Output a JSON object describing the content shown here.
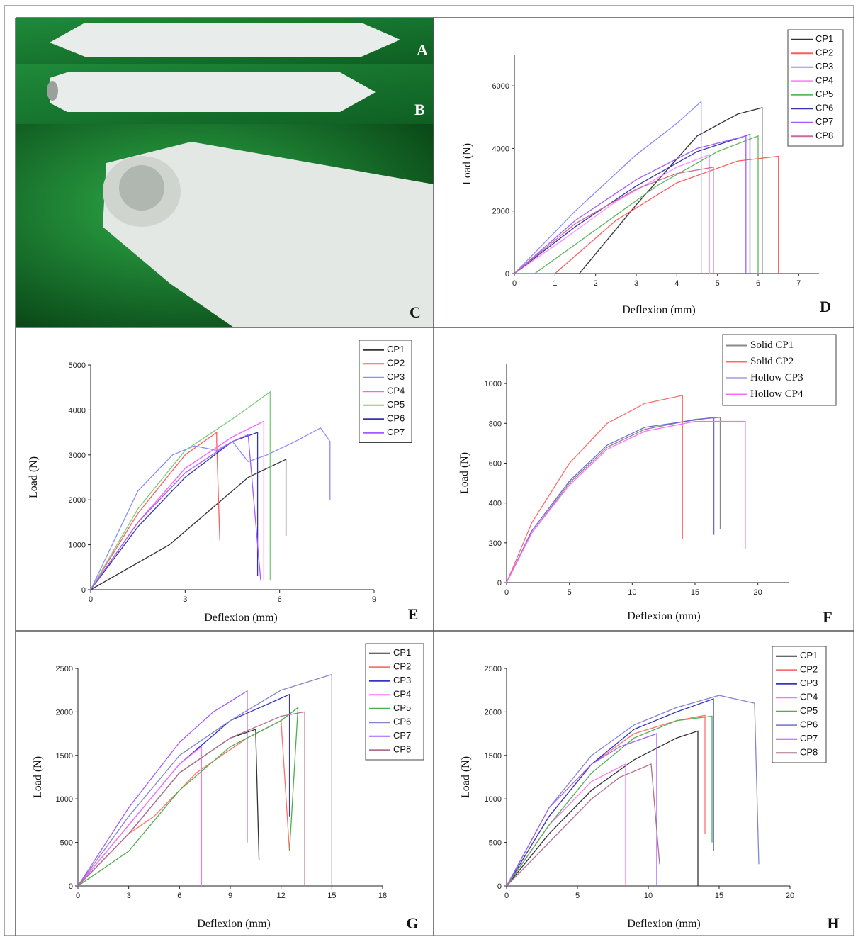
{
  "photo": {
    "labels": [
      "A",
      "B",
      "C"
    ]
  },
  "chart_data": [
    {
      "type": "line",
      "panel": "D",
      "xlabel": "Deflexion (mm)",
      "ylabel": "Load (N)",
      "xlim": [
        0,
        7.5
      ],
      "ylim": [
        0,
        7000
      ],
      "xticks": [
        0,
        1,
        2,
        3,
        4,
        5,
        6,
        7
      ],
      "yticks": [
        0,
        2000,
        4000,
        6000
      ],
      "legend": "upper right",
      "series": [
        {
          "name": "CP1",
          "color": "#333333",
          "x": [
            0,
            1.6,
            3,
            4.5,
            5.5,
            6.1,
            6.1
          ],
          "values": [
            0,
            0,
            2200,
            4400,
            5100,
            5300,
            0
          ]
        },
        {
          "name": "CP2",
          "color": "#ff5c5c",
          "x": [
            0,
            1,
            2.5,
            4,
            5.5,
            6.5,
            6.5
          ],
          "values": [
            0,
            0,
            1700,
            2900,
            3600,
            3750,
            0
          ]
        },
        {
          "name": "CP3",
          "color": "#8c8cff",
          "x": [
            0,
            1.5,
            3,
            4,
            4.6,
            4.6
          ],
          "values": [
            0,
            2000,
            3800,
            4800,
            5500,
            0
          ]
        },
        {
          "name": "CP4",
          "color": "#ff8cff",
          "x": [
            0,
            1,
            2.5,
            4,
            4.8,
            4.8
          ],
          "values": [
            0,
            900,
            2300,
            3400,
            3800,
            0
          ]
        },
        {
          "name": "CP5",
          "color": "#5cb85c",
          "x": [
            0,
            0.5,
            2,
            3.5,
            5,
            6,
            6
          ],
          "values": [
            0,
            0,
            1400,
            2800,
            3900,
            4400,
            0
          ]
        },
        {
          "name": "CP6",
          "color": "#3535a8",
          "x": [
            0,
            1.5,
            3,
            4.5,
            5.8,
            5.8
          ],
          "values": [
            0,
            1500,
            2800,
            3900,
            4450,
            0
          ]
        },
        {
          "name": "CP7",
          "color": "#a35cff",
          "x": [
            0,
            1.5,
            3,
            4.5,
            5.7,
            5.7
          ],
          "values": [
            0,
            1700,
            3000,
            4000,
            4400,
            0
          ]
        },
        {
          "name": "CP8",
          "color": "#c86a9a",
          "x": [
            0,
            1.5,
            3,
            4,
            4.9,
            4.9
          ],
          "values": [
            0,
            1600,
            2700,
            3200,
            3400,
            0
          ]
        }
      ]
    },
    {
      "type": "line",
      "panel": "E",
      "xlabel": "Deflexion (mm)",
      "ylabel": "Load (N)",
      "xlim": [
        0,
        9
      ],
      "ylim": [
        0,
        5000
      ],
      "xticks": [
        0,
        3,
        6,
        9
      ],
      "yticks": [
        0,
        1000,
        2000,
        3000,
        4000,
        5000
      ],
      "legend": "upper right",
      "series": [
        {
          "name": "CP1",
          "color": "#333333",
          "x": [
            0,
            2.5,
            5,
            6.2,
            6.2
          ],
          "values": [
            0,
            1000,
            2500,
            2900,
            1200
          ]
        },
        {
          "name": "CP2",
          "color": "#ff5c5c",
          "x": [
            0,
            1.5,
            3,
            4,
            4,
            4.1
          ],
          "values": [
            0,
            1700,
            3000,
            3500,
            3300,
            1100
          ]
        },
        {
          "name": "CP3",
          "color": "#8c8cff",
          "x": [
            0,
            1.5,
            2.6,
            3.3,
            4,
            4.5,
            5,
            5.6,
            6.5,
            7.3,
            7.6,
            7.6
          ],
          "values": [
            0,
            2200,
            3000,
            3200,
            3100,
            3300,
            2850,
            3000,
            3300,
            3600,
            3300,
            2000
          ]
        },
        {
          "name": "CP4",
          "color": "#ff5cff",
          "x": [
            0,
            1.5,
            3,
            4.5,
            5.5,
            5.5
          ],
          "values": [
            0,
            1500,
            2700,
            3400,
            3750,
            200
          ]
        },
        {
          "name": "CP5",
          "color": "#7ccc7c",
          "x": [
            0,
            1.5,
            3,
            4.5,
            5.7,
            5.7
          ],
          "values": [
            0,
            1800,
            3100,
            3800,
            4400,
            200
          ]
        },
        {
          "name": "CP6",
          "color": "#3535a8",
          "x": [
            0,
            1.5,
            3,
            4.5,
            5.3,
            5.3
          ],
          "values": [
            0,
            1400,
            2500,
            3300,
            3500,
            300
          ]
        },
        {
          "name": "CP7",
          "color": "#a35cff",
          "x": [
            0,
            1.5,
            3,
            4.5,
            5,
            5.4
          ],
          "values": [
            0,
            1500,
            2600,
            3300,
            3450,
            200
          ]
        }
      ]
    },
    {
      "type": "line",
      "panel": "F",
      "xlabel": "Deflexion (mm)",
      "ylabel": "Load (N)",
      "xlim": [
        0,
        22.5
      ],
      "ylim": [
        0,
        1100
      ],
      "xticks": [
        0,
        5,
        10,
        15,
        20
      ],
      "yticks": [
        0,
        200,
        400,
        600,
        800,
        1000
      ],
      "legend": "upper right",
      "series": [
        {
          "name": "Solid CP1",
          "color": "#888888",
          "x": [
            0,
            2,
            5,
            8,
            11,
            15,
            17,
            17
          ],
          "values": [
            0,
            250,
            500,
            680,
            770,
            820,
            830,
            270
          ]
        },
        {
          "name": "Solid CP2",
          "color": "#ff6b6b",
          "x": [
            0,
            2,
            5,
            8,
            11,
            14,
            14
          ],
          "values": [
            0,
            300,
            600,
            800,
            900,
            940,
            220
          ]
        },
        {
          "name": "Hollow CP3",
          "color": "#6b6bd8",
          "x": [
            0,
            2,
            5,
            8,
            11,
            16.5,
            16.5
          ],
          "values": [
            0,
            260,
            510,
            690,
            780,
            830,
            240
          ]
        },
        {
          "name": "Hollow CP4",
          "color": "#ff6bff",
          "x": [
            0,
            2,
            5,
            8,
            11,
            15,
            19,
            19
          ],
          "values": [
            0,
            250,
            490,
            670,
            760,
            810,
            810,
            170
          ]
        }
      ]
    },
    {
      "type": "line",
      "panel": "G",
      "xlabel": "Deflexion (mm)",
      "ylabel": "Load (N)",
      "xlim": [
        0,
        18
      ],
      "ylim": [
        0,
        2500
      ],
      "xticks": [
        0,
        3,
        6,
        9,
        12,
        15,
        18
      ],
      "yticks": [
        0,
        500,
        1000,
        1500,
        2000,
        2500
      ],
      "legend": "upper right",
      "series": [
        {
          "name": "CP1",
          "color": "#333333",
          "x": [
            0,
            3,
            6,
            9,
            10.5,
            10.7
          ],
          "values": [
            0,
            600,
            1300,
            1700,
            1800,
            300
          ]
        },
        {
          "name": "CP2",
          "color": "#ff7070",
          "x": [
            0,
            3,
            4.5,
            7,
            10,
            12,
            12.5
          ],
          "values": [
            0,
            600,
            800,
            1300,
            1700,
            1900,
            400
          ]
        },
        {
          "name": "CP3",
          "color": "#3535c8",
          "x": [
            0,
            3,
            6,
            9,
            12.5,
            12.5
          ],
          "values": [
            0,
            700,
            1400,
            1900,
            2200,
            800
          ]
        },
        {
          "name": "CP4",
          "color": "#ff70ff",
          "x": [
            0,
            3,
            6,
            7.3,
            7.3
          ],
          "values": [
            0,
            700,
            1400,
            1600,
            0
          ]
        },
        {
          "name": "CP5",
          "color": "#4cae4c",
          "x": [
            0,
            3,
            6,
            9,
            12,
            13,
            12.5
          ],
          "values": [
            0,
            400,
            1100,
            1600,
            1900,
            2050,
            400
          ]
        },
        {
          "name": "CP6",
          "color": "#8585cc",
          "x": [
            0,
            3,
            6,
            9,
            12,
            15,
            15
          ],
          "values": [
            0,
            800,
            1500,
            1900,
            2250,
            2430,
            0
          ]
        },
        {
          "name": "CP7",
          "color": "#a35cff",
          "x": [
            0,
            3,
            6,
            8,
            10,
            10
          ],
          "values": [
            0,
            900,
            1650,
            2000,
            2240,
            500
          ]
        },
        {
          "name": "CP8",
          "color": "#b07090",
          "x": [
            0,
            3,
            6,
            9,
            12,
            13.4,
            13.4
          ],
          "values": [
            0,
            600,
            1300,
            1700,
            1950,
            2000,
            0
          ]
        }
      ]
    },
    {
      "type": "line",
      "panel": "H",
      "xlabel": "Deflexion (mm)",
      "ylabel": "Load (N)",
      "xlim": [
        0,
        20
      ],
      "ylim": [
        0,
        2500
      ],
      "xticks": [
        0,
        5,
        10,
        15,
        20
      ],
      "yticks": [
        0,
        500,
        1000,
        1500,
        2000,
        2500
      ],
      "legend": "upper right",
      "series": [
        {
          "name": "CP1",
          "color": "#333333",
          "x": [
            0,
            3,
            6,
            9,
            12,
            13.5,
            13.5
          ],
          "values": [
            0,
            600,
            1100,
            1450,
            1700,
            1780,
            0
          ]
        },
        {
          "name": "CP2",
          "color": "#ff7070",
          "x": [
            0,
            3,
            6,
            9,
            12,
            14,
            14
          ],
          "values": [
            0,
            800,
            1400,
            1750,
            1900,
            1960,
            600
          ]
        },
        {
          "name": "CP3",
          "color": "#3535c8",
          "x": [
            0,
            3,
            6,
            9,
            12,
            14.6,
            14.6
          ],
          "values": [
            0,
            800,
            1400,
            1800,
            2000,
            2150,
            400
          ]
        },
        {
          "name": "CP4",
          "color": "#ff70ff",
          "x": [
            0,
            3,
            6,
            8.4,
            8.4
          ],
          "values": [
            0,
            700,
            1200,
            1400,
            0
          ]
        },
        {
          "name": "CP5",
          "color": "#4cae4c",
          "x": [
            0,
            3,
            6,
            9,
            12,
            14.5,
            14.5
          ],
          "values": [
            0,
            700,
            1300,
            1700,
            1900,
            1950,
            500
          ]
        },
        {
          "name": "CP6",
          "color": "#8585cc",
          "x": [
            0,
            3,
            6,
            9,
            12,
            15,
            17.5,
            17.8
          ],
          "values": [
            0,
            900,
            1500,
            1850,
            2050,
            2190,
            2100,
            250
          ]
        },
        {
          "name": "CP7",
          "color": "#a35cff",
          "x": [
            0,
            3,
            6,
            8,
            10.6,
            10.6
          ],
          "values": [
            0,
            900,
            1400,
            1600,
            1750,
            0
          ]
        },
        {
          "name": "CP8",
          "color": "#b07090",
          "x": [
            0,
            3,
            6,
            8,
            10.2,
            10.8
          ],
          "values": [
            0,
            500,
            1000,
            1250,
            1400,
            250
          ]
        }
      ]
    }
  ]
}
